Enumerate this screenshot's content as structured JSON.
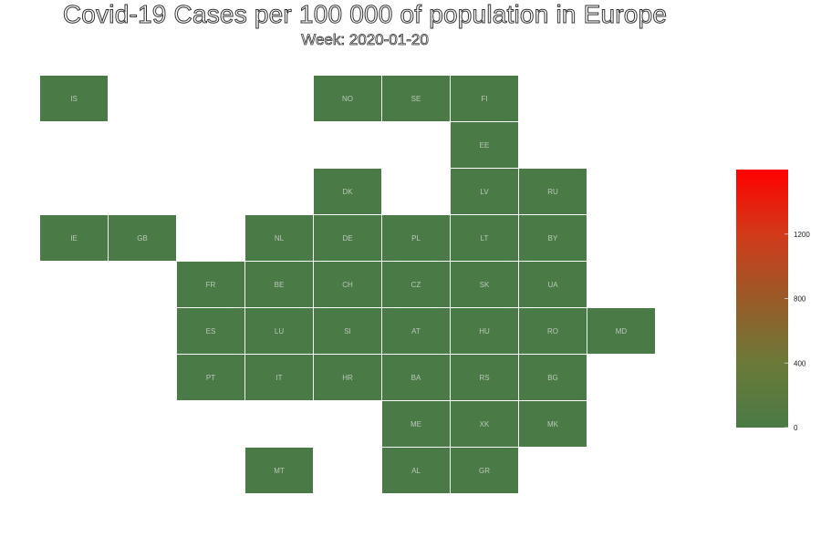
{
  "chart_data": {
    "type": "heatmap",
    "title": "Covid-19 Cases per 100 000 of population in Europe",
    "subtitle": "Week: 2020-01-20",
    "colorscale": {
      "min": 0,
      "max": 1600,
      "low_color": "#4a7a45",
      "high_color": "#ff0000",
      "ticks": [
        0,
        400,
        800,
        1200
      ]
    },
    "tiles": [
      {
        "code": "IS",
        "col": 0,
        "row": 0,
        "value": 0
      },
      {
        "code": "NO",
        "col": 4,
        "row": 0,
        "value": 0
      },
      {
        "code": "SE",
        "col": 5,
        "row": 0,
        "value": 0
      },
      {
        "code": "FI",
        "col": 6,
        "row": 0,
        "value": 0
      },
      {
        "code": "EE",
        "col": 6,
        "row": 1,
        "value": 0
      },
      {
        "code": "DK",
        "col": 4,
        "row": 2,
        "value": 0
      },
      {
        "code": "LV",
        "col": 6,
        "row": 2,
        "value": 0
      },
      {
        "code": "RU",
        "col": 7,
        "row": 2,
        "value": 0
      },
      {
        "code": "IE",
        "col": 0,
        "row": 3,
        "value": 0
      },
      {
        "code": "GB",
        "col": 1,
        "row": 3,
        "value": 0
      },
      {
        "code": "NL",
        "col": 3,
        "row": 3,
        "value": 0
      },
      {
        "code": "DE",
        "col": 4,
        "row": 3,
        "value": 0
      },
      {
        "code": "PL",
        "col": 5,
        "row": 3,
        "value": 0
      },
      {
        "code": "LT",
        "col": 6,
        "row": 3,
        "value": 0
      },
      {
        "code": "BY",
        "col": 7,
        "row": 3,
        "value": 0
      },
      {
        "code": "FR",
        "col": 2,
        "row": 4,
        "value": 0
      },
      {
        "code": "BE",
        "col": 3,
        "row": 4,
        "value": 0
      },
      {
        "code": "CH",
        "col": 4,
        "row": 4,
        "value": 0
      },
      {
        "code": "CZ",
        "col": 5,
        "row": 4,
        "value": 0
      },
      {
        "code": "SK",
        "col": 6,
        "row": 4,
        "value": 0
      },
      {
        "code": "UA",
        "col": 7,
        "row": 4,
        "value": 0
      },
      {
        "code": "ES",
        "col": 2,
        "row": 5,
        "value": 0
      },
      {
        "code": "LU",
        "col": 3,
        "row": 5,
        "value": 0
      },
      {
        "code": "SI",
        "col": 4,
        "row": 5,
        "value": 0
      },
      {
        "code": "AT",
        "col": 5,
        "row": 5,
        "value": 0
      },
      {
        "code": "HU",
        "col": 6,
        "row": 5,
        "value": 0
      },
      {
        "code": "RO",
        "col": 7,
        "row": 5,
        "value": 0
      },
      {
        "code": "MD",
        "col": 8,
        "row": 5,
        "value": 0
      },
      {
        "code": "PT",
        "col": 2,
        "row": 6,
        "value": 0
      },
      {
        "code": "IT",
        "col": 3,
        "row": 6,
        "value": 0
      },
      {
        "code": "HR",
        "col": 4,
        "row": 6,
        "value": 0
      },
      {
        "code": "BA",
        "col": 5,
        "row": 6,
        "value": 0
      },
      {
        "code": "RS",
        "col": 6,
        "row": 6,
        "value": 0
      },
      {
        "code": "BG",
        "col": 7,
        "row": 6,
        "value": 0
      },
      {
        "code": "ME",
        "col": 5,
        "row": 7,
        "value": 0
      },
      {
        "code": "XK",
        "col": 6,
        "row": 7,
        "value": 0
      },
      {
        "code": "MK",
        "col": 7,
        "row": 7,
        "value": 0
      },
      {
        "code": "MT",
        "col": 3,
        "row": 8,
        "value": 0
      },
      {
        "code": "AL",
        "col": 5,
        "row": 8,
        "value": 0
      },
      {
        "code": "GR",
        "col": 6,
        "row": 8,
        "value": 0
      }
    ]
  }
}
